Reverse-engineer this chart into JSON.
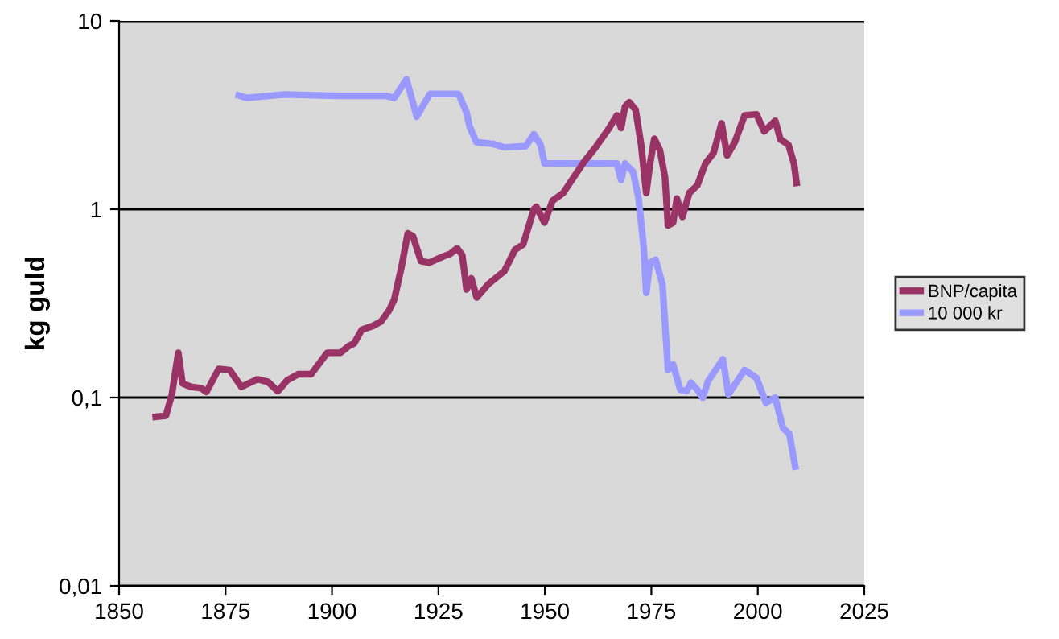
{
  "chart_data": {
    "type": "line",
    "ylabel": "kg guld",
    "log": "y",
    "xlim": [
      1850,
      2025
    ],
    "xticks": [
      1850,
      1875,
      1900,
      1925,
      1950,
      1975,
      2000,
      2025
    ],
    "ylim": [
      0.01,
      10
    ],
    "yticks": [
      {
        "value": 0.01,
        "label": "0,01"
      },
      {
        "value": 0.1,
        "label": "0,1"
      },
      {
        "value": 1,
        "label": "1"
      },
      {
        "value": 10,
        "label": "10"
      }
    ],
    "grid": "y",
    "legend": "right",
    "line_style": "solid",
    "marker": "none",
    "series": [
      {
        "name": "BNP/capita",
        "color": "#993366",
        "x": [
          1858.6,
          1861,
          1862.4,
          1863.9,
          1864.9,
          1866.8,
          1869.3,
          1870.5,
          1873.4,
          1876,
          1878.7,
          1882.5,
          1885,
          1887.3,
          1889.4,
          1892,
          1895.1,
          1898.9,
          1902,
          1904,
          1905.2,
          1907,
          1909.6,
          1911.5,
          1913.4,
          1914.6,
          1916.3,
          1917.8,
          1919,
          1920.9,
          1922.8,
          1926,
          1927.8,
          1929.4,
          1930.6,
          1931.6,
          1932.7,
          1934,
          1936.7,
          1940.5,
          1943,
          1944.9,
          1947.4,
          1948,
          1949.9,
          1951.8,
          1954.3,
          1959.3,
          1961.9,
          1965,
          1966.9,
          1967.9,
          1968.8,
          1969.8,
          1971.3,
          1972.6,
          1973.8,
          1974.7,
          1975.7,
          1977,
          1978.2,
          1978.9,
          1980.1,
          1981,
          1982.3,
          1983.9,
          1985.8,
          1987.7,
          1989.6,
          1991.5,
          1992.8,
          1994.6,
          1996.9,
          1999.7,
          2001.5,
          2004.1,
          2005.3,
          2007.2,
          2008.5,
          2009.1
        ],
        "values": [
          0.079,
          0.08,
          0.104,
          0.173,
          0.119,
          0.114,
          0.112,
          0.107,
          0.142,
          0.14,
          0.114,
          0.125,
          0.121,
          0.108,
          0.123,
          0.133,
          0.133,
          0.173,
          0.173,
          0.188,
          0.194,
          0.229,
          0.24,
          0.253,
          0.29,
          0.33,
          0.49,
          0.745,
          0.72,
          0.53,
          0.52,
          0.56,
          0.58,
          0.62,
          0.57,
          0.375,
          0.43,
          0.34,
          0.4,
          0.47,
          0.61,
          0.65,
          1.0,
          1.03,
          0.85,
          1.11,
          1.22,
          1.8,
          2.13,
          2.68,
          3.15,
          2.7,
          3.5,
          3.7,
          3.37,
          2.2,
          1.22,
          1.75,
          2.37,
          2.06,
          1.48,
          0.82,
          0.85,
          1.14,
          0.91,
          1.22,
          1.34,
          1.75,
          1.99,
          2.86,
          1.93,
          2.27,
          3.15,
          3.19,
          2.59,
          2.95,
          2.35,
          2.2,
          1.75,
          1.38
        ]
      },
      {
        "name": "10 000 kr",
        "color": "#9999ff",
        "x": [
          1878.1,
          1880,
          1888.8,
          1901.4,
          1912.7,
          1914.6,
          1917.5,
          1919.9,
          1923,
          1929.7,
          1931.6,
          1932.3,
          1933.9,
          1937.9,
          1940.5,
          1945.5,
          1947.4,
          1949,
          1949.9,
          1966.9,
          1967.9,
          1968.8,
          1970.7,
          1972,
          1973.2,
          1973.8,
          1974.7,
          1976,
          1977.6,
          1978.2,
          1978.9,
          1980.1,
          1981.8,
          1983.3,
          1984.3,
          1985.8,
          1987.1,
          1988.3,
          1991.8,
          1993.1,
          1996.9,
          1999.7,
          2001.9,
          2004.1,
          2005.9,
          2007.4,
          2008.8
        ],
        "values": [
          4.02,
          3.9,
          4.07,
          4.0,
          4.0,
          3.9,
          4.9,
          3.1,
          4.1,
          4.1,
          3.26,
          2.76,
          2.27,
          2.22,
          2.13,
          2.16,
          2.5,
          2.2,
          1.75,
          1.75,
          1.43,
          1.75,
          1.58,
          1.14,
          0.63,
          0.36,
          0.52,
          0.54,
          0.4,
          0.25,
          0.14,
          0.15,
          0.11,
          0.108,
          0.12,
          0.11,
          0.1,
          0.122,
          0.16,
          0.104,
          0.14,
          0.127,
          0.094,
          0.1,
          0.069,
          0.064,
          0.043
        ]
      }
    ]
  }
}
